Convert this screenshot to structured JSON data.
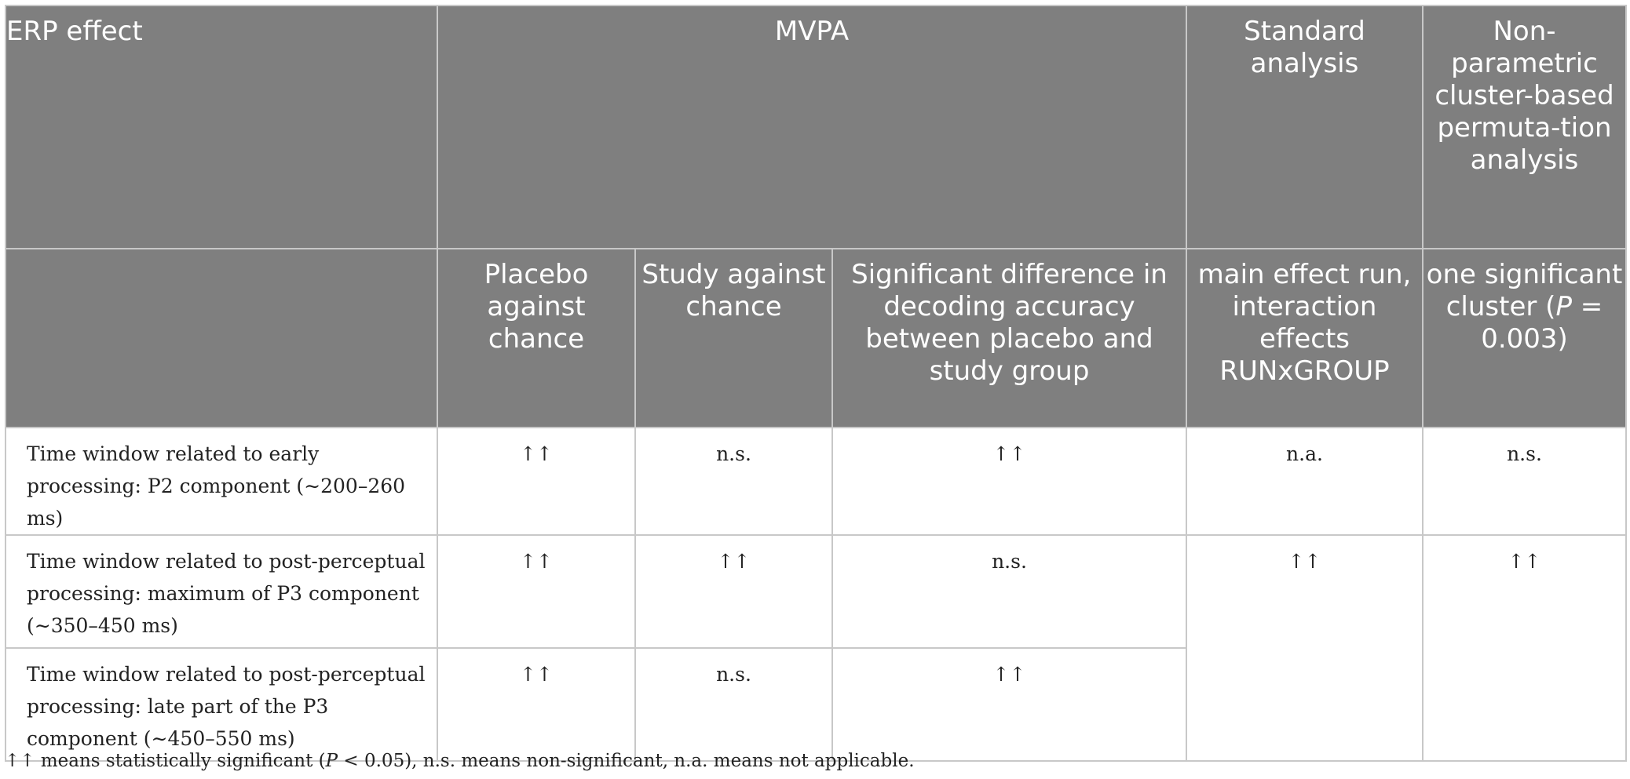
{
  "table": {
    "header_top": {
      "erp_effect": "ERP effect",
      "mvpa": "MVPA",
      "standard_analysis": "Standard analysis",
      "nonparametric": "Non-parametric cluster-based permuta-tion analysis"
    },
    "header_sub": {
      "placebo_against_chance": "Placebo against chance",
      "study_against_chance": "Study against chance",
      "significant_difference": "Significant difference in decoding accuracy between placebo and study group",
      "main_effect": "main effect run, interaction effects RUNxGROUP",
      "cluster_prefix": "one significant cluster (",
      "cluster_p": "P",
      "cluster_suffix": " = 0.003)"
    },
    "rows": [
      {
        "label": "Time window related to early processing: P2 component (∼200–260 ms)",
        "placebo": "↑↑",
        "study": "n.s.",
        "difference": "↑↑",
        "standard": "n.a.",
        "cluster": "n.s."
      },
      {
        "label": "Time window related to post-perceptual processing: maximum of P3 component (∼350–450 ms)",
        "placebo": "↑↑",
        "study": "↑↑",
        "difference": "n.s.",
        "standard": "↑↑",
        "cluster": "↑↑"
      },
      {
        "label": "Time window related to post-perceptual processing: late part of the P3 component (∼450–550 ms)",
        "placebo": "↑↑",
        "study": "n.s.",
        "difference": "↑↑"
      }
    ]
  },
  "footnote": {
    "part1": "↑↑ means statistically significant (",
    "p": "P",
    "part2": " < 0.05), n.s. means non-significant, n.a. means not applicable."
  }
}
